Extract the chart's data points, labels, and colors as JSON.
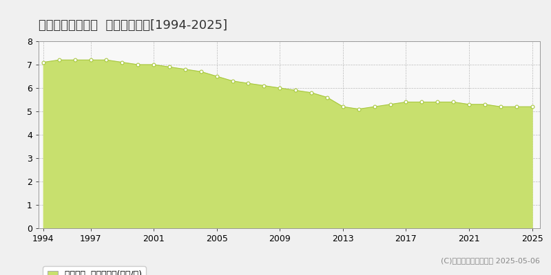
{
  "title": "相馬郡新地町小川  公示地価推移[1994-2025]",
  "years": [
    1994,
    1995,
    1996,
    1997,
    1998,
    1999,
    2000,
    2001,
    2002,
    2003,
    2004,
    2005,
    2006,
    2007,
    2008,
    2009,
    2010,
    2011,
    2012,
    2013,
    2014,
    2015,
    2016,
    2017,
    2018,
    2019,
    2020,
    2021,
    2022,
    2023,
    2024,
    2025
  ],
  "values": [
    7.1,
    7.2,
    7.2,
    7.2,
    7.2,
    7.1,
    7.0,
    7.0,
    6.9,
    6.8,
    6.7,
    6.5,
    6.3,
    6.2,
    6.1,
    6.0,
    5.9,
    5.8,
    5.6,
    5.2,
    5.1,
    5.2,
    5.3,
    5.4,
    5.4,
    5.4,
    5.4,
    5.3,
    5.3,
    5.2,
    5.2,
    5.2
  ],
  "fill_color": "#c8e06e",
  "line_color": "#a8c840",
  "marker_color": "#ffffff",
  "marker_edge_color": "#a8c840",
  "background_color": "#f0f0f0",
  "plot_bg_color": "#f8f8f8",
  "grid_color": "#bbbbbb",
  "ylim": [
    0,
    8
  ],
  "yticks": [
    0,
    1,
    2,
    3,
    4,
    5,
    6,
    7,
    8
  ],
  "xticks": [
    1994,
    1997,
    2001,
    2005,
    2009,
    2013,
    2017,
    2021,
    2025
  ],
  "legend_label": "公示地価  平均坪単価(万円/坪)",
  "legend_color": "#c8e06e",
  "copyright_text": "(C)土地価格ドットコム 2025-05-06",
  "title_fontsize": 13,
  "axis_fontsize": 9,
  "legend_fontsize": 9,
  "copyright_fontsize": 8
}
